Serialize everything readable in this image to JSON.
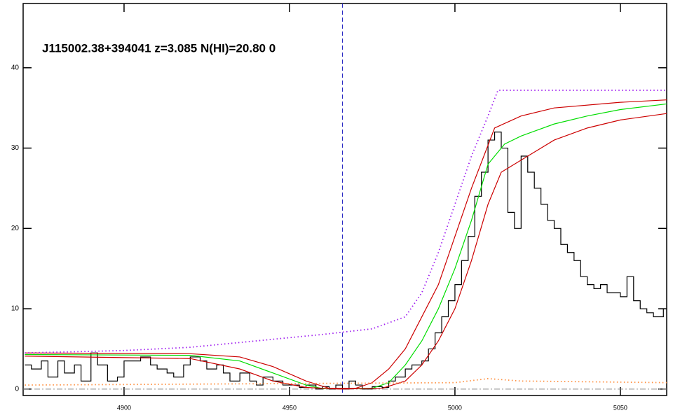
{
  "chart_data": {
    "type": "line",
    "title": "J115002.38+394041 z=3.085 N(HI)=20.80 0",
    "xlim": [
      4869.5,
      5064
    ],
    "ylim": [
      -0.8,
      48
    ],
    "xticks": [
      4900,
      4950,
      5000,
      5050
    ],
    "yticks": [
      0,
      10,
      20,
      30,
      40
    ],
    "hline": 0,
    "hline_color": "#888888",
    "vline": 4966,
    "vline_color": "#2020c0",
    "series": [
      {
        "color": "#000000",
        "style": "step",
        "x": [
          4870,
          4872,
          4875,
          4877,
          4880,
          4882,
          4885,
          4887,
          4890,
          4892,
          4895,
          4898,
          4900,
          4903,
          4905,
          4908,
          4910,
          4913,
          4915,
          4918,
          4920,
          4923,
          4925,
          4928,
          4930,
          4932,
          4935,
          4938,
          4940,
          4942,
          4945,
          4948,
          4950,
          4953,
          4955,
          4958,
          4960,
          4962,
          4964,
          4966,
          4968,
          4970,
          4972,
          4975,
          4978,
          4980,
          4982,
          4985,
          4987,
          4990,
          4992,
          4994,
          4996,
          4998,
          5000,
          5002,
          5004,
          5006,
          5008,
          5010,
          5012,
          5014,
          5016,
          5018,
          5020,
          5022,
          5024,
          5026,
          5028,
          5030,
          5032,
          5034,
          5036,
          5038,
          5040,
          5042,
          5044,
          5046,
          5048,
          5050,
          5052,
          5054,
          5056,
          5058,
          5060,
          5063
        ],
        "values": [
          3,
          2.5,
          3.5,
          1.5,
          3.5,
          2,
          3,
          1,
          4.5,
          3,
          1,
          1.5,
          3.5,
          3.5,
          4,
          3,
          2.5,
          2,
          1.5,
          3,
          4,
          3.5,
          2.5,
          3,
          2,
          1,
          2,
          1,
          0.5,
          1.5,
          1,
          0.5,
          0.5,
          0.2,
          0.5,
          0,
          0.3,
          0,
          0.5,
          0,
          1,
          0.5,
          0,
          0.3,
          0.2,
          1,
          1.5,
          2.5,
          3,
          3.5,
          5,
          7,
          9,
          11,
          13,
          16,
          19,
          24,
          27,
          31,
          32,
          30,
          22,
          20,
          29,
          27,
          25,
          23,
          21,
          20,
          18,
          17,
          16,
          14,
          13,
          12.5,
          13,
          12,
          12,
          11.5,
          14,
          11,
          10,
          9.5,
          9,
          10
        ]
      },
      {
        "color": "#00dd00",
        "style": "solid",
        "x": [
          4870,
          4920,
          4935,
          4945,
          4955,
          4960,
          4975,
          4980,
          4985,
          4990,
          4995,
          5000,
          5005,
          5010,
          5015,
          5020,
          5030,
          5040,
          5050,
          5064
        ],
        "values": [
          4.3,
          4.2,
          3.5,
          2,
          0.5,
          0.05,
          0.1,
          0.8,
          3,
          6,
          10,
          15,
          21,
          28,
          30.5,
          31.5,
          33,
          34,
          34.8,
          35.5
        ]
      },
      {
        "color": "#cc0000",
        "style": "solid",
        "x": [
          4870,
          4920,
          4935,
          4945,
          4955,
          4962,
          4970,
          4975,
          4980,
          4985,
          4990,
          4995,
          5000,
          5005,
          5012,
          5020,
          5030,
          5050,
          5064
        ],
        "values": [
          4.5,
          4.4,
          4,
          2.8,
          1,
          0.1,
          0.1,
          0.8,
          2.5,
          5,
          9,
          13,
          19,
          25,
          32.5,
          34,
          35,
          35.7,
          36
        ]
      },
      {
        "color": "#cc0000",
        "style": "solid",
        "x": [
          4870,
          4920,
          4935,
          4945,
          4955,
          4965,
          4978,
          4985,
          4990,
          4995,
          5000,
          5005,
          5010,
          5014,
          5020,
          5030,
          5040,
          5050,
          5064
        ],
        "values": [
          4.1,
          3.8,
          2.5,
          1,
          0.2,
          0,
          0.1,
          1,
          3,
          6,
          10,
          16,
          23,
          27,
          28.5,
          31,
          32.5,
          33.5,
          34.3
        ]
      },
      {
        "color": "#a020f0",
        "style": "dotted",
        "x": [
          4870,
          4900,
          4920,
          4940,
          4960,
          4975,
          4985,
          4990,
          4995,
          5000,
          5005,
          5010,
          5013,
          5064
        ],
        "values": [
          4.5,
          4.8,
          5.2,
          6,
          6.8,
          7.5,
          9,
          12,
          17,
          23,
          29,
          34,
          37.2,
          37.2
        ]
      },
      {
        "color": "#ff9040",
        "style": "dotted",
        "x": [
          4870,
          5000,
          5010,
          5020,
          5064
        ],
        "values": [
          0.5,
          0.8,
          1.3,
          1,
          0.8
        ]
      }
    ]
  }
}
